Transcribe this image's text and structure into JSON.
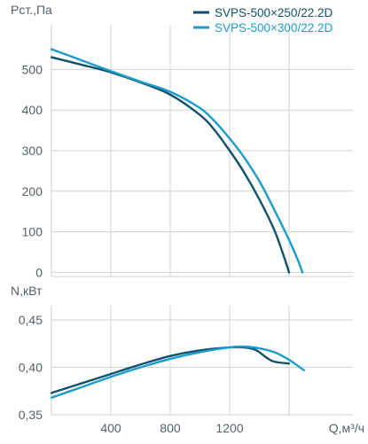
{
  "colors": {
    "series_dark": "#12506b",
    "series_light": "#1b9ccc",
    "grid": "#cdd2d5",
    "text": "#555f66"
  },
  "chart_data": [
    {
      "type": "line",
      "ylabel": "Pст.,Па",
      "xlim": [
        0,
        2030
      ],
      "ylim": [
        -10,
        610
      ],
      "yticks": [
        0,
        100,
        200,
        300,
        400,
        500
      ],
      "ytick_labels": [
        "0",
        "100",
        "200",
        "300",
        "400",
        "500"
      ],
      "xgrid": [
        400,
        800,
        1200,
        1600
      ],
      "grid": true,
      "legend_position": "top-right",
      "series": [
        {
          "name": "SVPS-500×250/22.2D",
          "color": "#12506b",
          "x": [
            0,
            200,
            400,
            600,
            800,
            1000,
            1100,
            1200,
            1300,
            1400,
            1500,
            1560,
            1600
          ],
          "y": [
            530,
            512,
            493,
            468,
            438,
            388,
            350,
            300,
            245,
            180,
            105,
            45,
            0
          ]
        },
        {
          "name": "SVPS-500×300/22.2D",
          "color": "#1b9ccc",
          "x": [
            0,
            200,
            400,
            600,
            800,
            1000,
            1100,
            1200,
            1300,
            1400,
            1500,
            1600,
            1660,
            1690
          ],
          "y": [
            550,
            523,
            496,
            470,
            445,
            405,
            372,
            330,
            282,
            225,
            155,
            80,
            30,
            0
          ]
        }
      ]
    },
    {
      "type": "line",
      "ylabel": "N,кВт",
      "xlabel": "Q,м³/ч",
      "xlim": [
        0,
        2030
      ],
      "ylim": [
        0.35,
        0.465
      ],
      "yticks": [
        0.35,
        0.4,
        0.45
      ],
      "ytick_labels": [
        "0,35",
        "0,40",
        "0,45"
      ],
      "xticks": [
        400,
        800,
        1200
      ],
      "xtick_labels": [
        "400",
        "800",
        "1200"
      ],
      "xgrid": [
        400,
        800,
        1200,
        1600
      ],
      "grid": true,
      "series": [
        {
          "name": "SVPS-500×250/22.2D",
          "color": "#12506b",
          "x": [
            0,
            200,
            400,
            600,
            800,
            1000,
            1200,
            1300,
            1380,
            1450,
            1500,
            1600
          ],
          "y": [
            0.373,
            0.383,
            0.393,
            0.403,
            0.412,
            0.418,
            0.421,
            0.421,
            0.418,
            0.41,
            0.406,
            0.404
          ]
        },
        {
          "name": "SVPS-500×300/22.2D",
          "color": "#1b9ccc",
          "x": [
            0,
            200,
            400,
            600,
            800,
            1000,
            1200,
            1300,
            1400,
            1500,
            1600,
            1700
          ],
          "y": [
            0.368,
            0.379,
            0.39,
            0.4,
            0.409,
            0.416,
            0.421,
            0.422,
            0.42,
            0.416,
            0.408,
            0.397
          ]
        }
      ]
    }
  ]
}
